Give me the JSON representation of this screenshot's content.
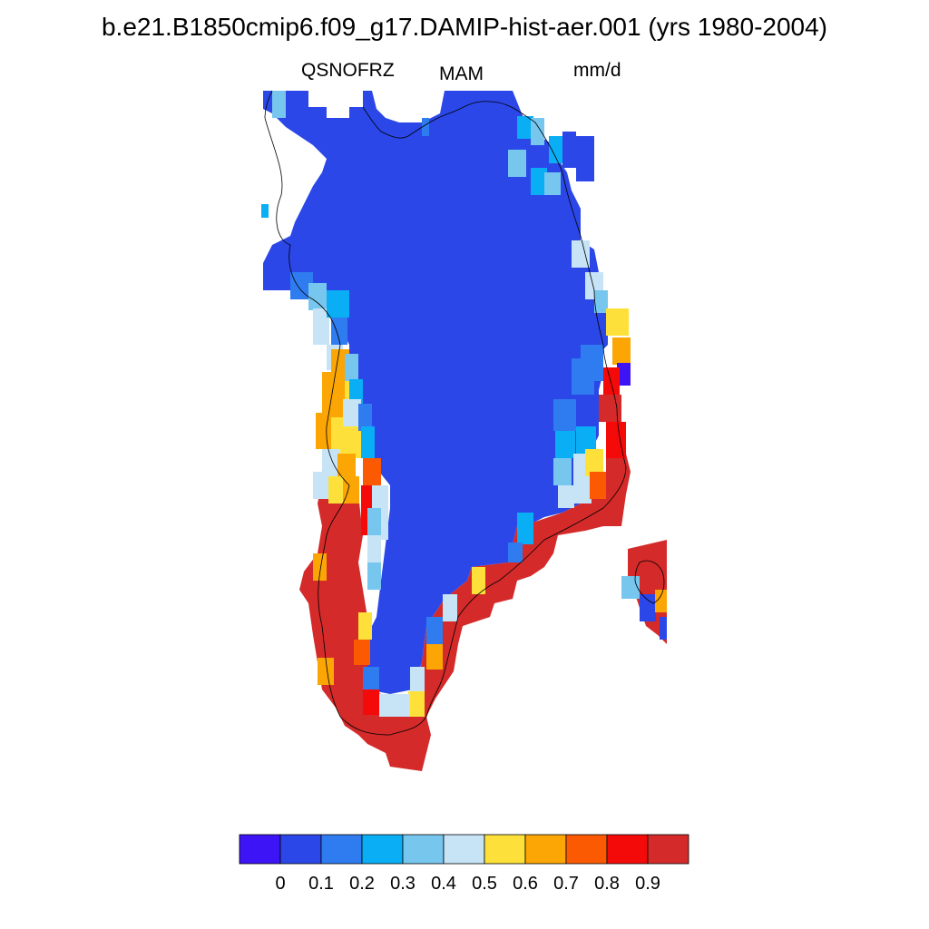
{
  "title": "b.e21.B1850cmip6.f09_g17.DAMIP-hist-aer.001 (yrs 1980-2004)",
  "subtitle": {
    "variable": "QSNOFRZ",
    "season": "MAM",
    "units": "mm/d"
  },
  "colorbar": {
    "colors": [
      "#3d14f5",
      "#2b47e8",
      "#2f7cf0",
      "#0aaef5",
      "#77c6ee",
      "#c6e4f6",
      "#fde13a",
      "#fba604",
      "#fb5a02",
      "#f50a0a",
      "#d42a2a"
    ],
    "labels": [
      "0",
      "0.1",
      "0.2",
      "0.3",
      "0.4",
      "0.5",
      "0.6",
      "0.7",
      "0.8",
      "0.9"
    ]
  },
  "map": {
    "main_color": "#2b47e8",
    "land_color": "#d42a2a"
  }
}
